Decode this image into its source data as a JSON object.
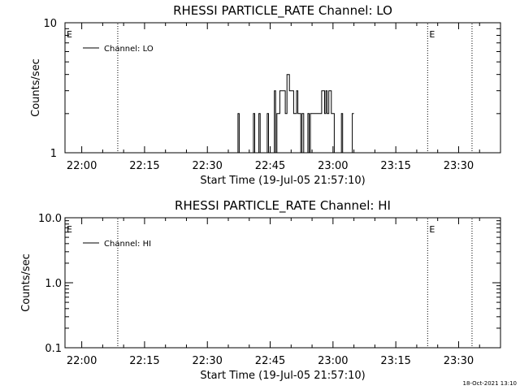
{
  "chart_data": [
    {
      "type": "line",
      "title": "RHESSI PARTICLE_RATE Channel: LO",
      "xlabel": "Start Time (19-Jul-05 21:57:10)",
      "ylabel": "Counts/sec",
      "x_tick_labels": [
        "22:00",
        "22:15",
        "22:30",
        "22:45",
        "23:00",
        "23:15",
        "23:30"
      ],
      "x_ticks_min": [
        0,
        15,
        30,
        45,
        60,
        75,
        90
      ],
      "xlim_min": [
        -4,
        100
      ],
      "y_scale": "log",
      "ylim": [
        1,
        10
      ],
      "y_tick_labels": [
        "1",
        "10"
      ],
      "y_tick_values": [
        1,
        10
      ],
      "legend": {
        "entry": "Channel: LO",
        "position": "top-left"
      },
      "event_markers": [
        {
          "label": "E",
          "x_min": -4,
          "line": false
        },
        {
          "label": "",
          "x_min": 8.6,
          "line": true
        },
        {
          "label": "E",
          "x_min": 82.6,
          "line": true
        },
        {
          "label": "",
          "x_min": 93.2,
          "line": true
        }
      ],
      "series": [
        {
          "x_min": [
            37.0,
            37.3,
            37.6,
            38.0,
            38.3,
            38.6,
            39.0,
            39.3,
            39.6,
            40.0,
            40.3,
            40.6,
            41.0,
            41.3,
            41.6,
            42.0,
            42.3,
            42.6,
            43.0,
            43.3,
            43.6,
            44.0,
            44.3,
            44.6,
            45.0,
            45.3,
            45.6,
            46.0,
            46.3,
            46.6,
            47.0,
            47.3,
            47.6,
            48.0,
            48.3,
            48.6,
            49.0,
            49.3,
            49.6,
            50.0,
            50.3,
            50.6,
            51.0,
            51.3,
            51.6,
            52.0,
            52.3,
            52.6,
            53.0,
            53.3,
            53.6,
            54.0,
            54.3,
            54.6,
            55.0,
            55.3,
            55.6,
            56.0,
            56.3,
            56.6,
            57.0,
            57.3,
            57.6,
            58.0,
            58.3,
            58.6,
            59.0,
            59.3,
            59.6,
            60.0,
            60.3,
            60.6,
            61.0,
            61.3,
            61.6,
            62.0,
            62.3,
            62.6,
            63.0,
            63.3,
            63.6,
            64.0,
            64.3,
            64.6,
            65.0
          ],
          "y": [
            1,
            2,
            1,
            1,
            1,
            1,
            1,
            1,
            1,
            1,
            1,
            1,
            2,
            1,
            1,
            1,
            2,
            1,
            1,
            1,
            1,
            1,
            2,
            1,
            1,
            1,
            1,
            3,
            1,
            2,
            2,
            3,
            3,
            3,
            3,
            2,
            4,
            4,
            3,
            3,
            3,
            2,
            2,
            3,
            2,
            2,
            1,
            2,
            1,
            1,
            1,
            2,
            1,
            2,
            2,
            2,
            2,
            2,
            2,
            2,
            2,
            3,
            3,
            2,
            3,
            2,
            3,
            3,
            2,
            2,
            1,
            1,
            1,
            1,
            1,
            2,
            1,
            1,
            1,
            1,
            1,
            1,
            1,
            2,
            2
          ]
        }
      ]
    },
    {
      "type": "line",
      "title": "RHESSI PARTICLE_RATE Channel: HI",
      "xlabel": "Start Time (19-Jul-05 21:57:10)",
      "ylabel": "Counts/sec",
      "x_tick_labels": [
        "22:00",
        "22:15",
        "22:30",
        "22:45",
        "23:00",
        "23:15",
        "23:30"
      ],
      "x_ticks_min": [
        0,
        15,
        30,
        45,
        60,
        75,
        90
      ],
      "xlim_min": [
        -4,
        100
      ],
      "y_scale": "log",
      "ylim": [
        0.1,
        10
      ],
      "y_tick_labels": [
        "0.1",
        "1.0",
        "10.0"
      ],
      "y_tick_values": [
        0.1,
        1,
        10
      ],
      "legend": {
        "entry": "Channel: HI",
        "position": "top-left"
      },
      "event_markers": [
        {
          "label": "E",
          "x_min": -4,
          "line": false
        },
        {
          "label": "",
          "x_min": 8.6,
          "line": true
        },
        {
          "label": "E",
          "x_min": 82.6,
          "line": true
        },
        {
          "label": "",
          "x_min": 93.2,
          "line": true
        }
      ],
      "series": [
        {
          "x_min": [],
          "y": []
        }
      ]
    }
  ],
  "footer": {
    "timestamp": "18-Oct-2021 13:10"
  }
}
